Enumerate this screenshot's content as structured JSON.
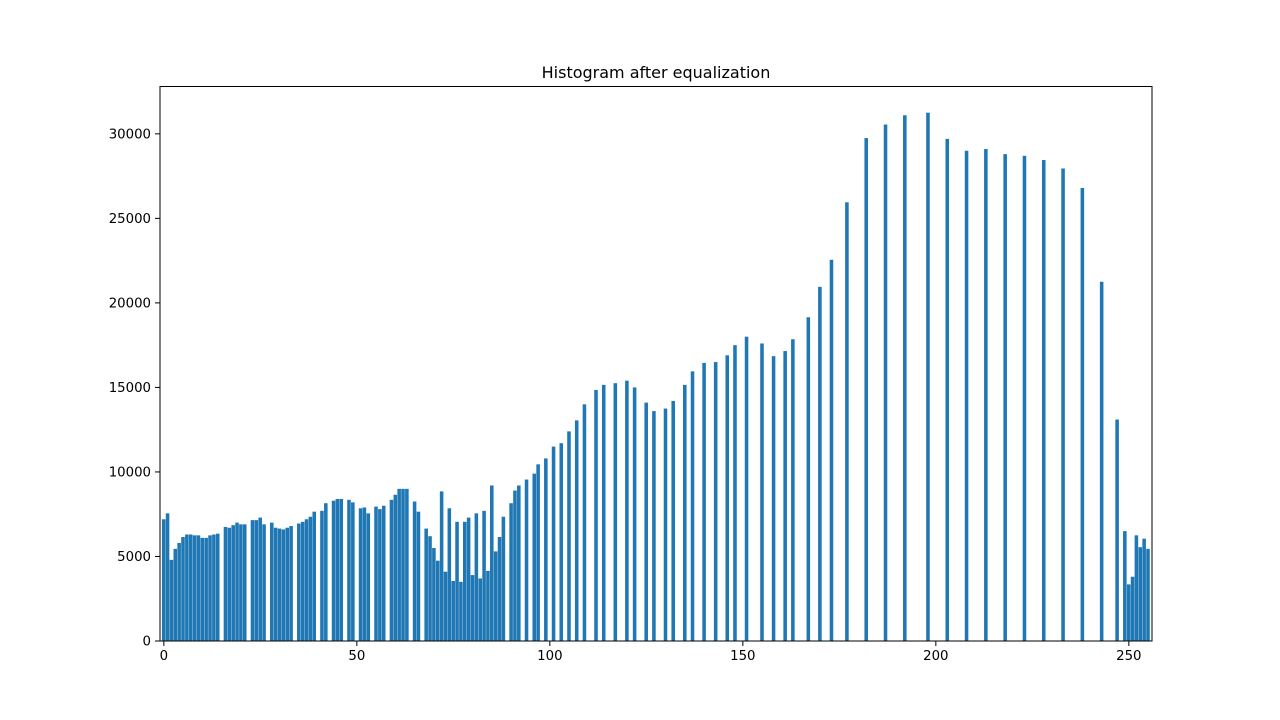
{
  "chart_data": {
    "type": "bar",
    "title": "Histogram after equalization",
    "xlabel": "",
    "ylabel": "",
    "xlim": [
      -1,
      256
    ],
    "ylim": [
      0,
      32800
    ],
    "xticks": [
      0,
      50,
      100,
      150,
      200,
      250
    ],
    "yticks": [
      0,
      5000,
      10000,
      15000,
      20000,
      25000,
      30000
    ],
    "grid": false,
    "legend": "none",
    "bar_color": "#1f77b4",
    "x": [
      0,
      1,
      2,
      3,
      4,
      5,
      6,
      7,
      8,
      9,
      10,
      11,
      12,
      13,
      14,
      15,
      16,
      17,
      18,
      19,
      20,
      21,
      22,
      23,
      24,
      25,
      26,
      27,
      28,
      29,
      30,
      31,
      32,
      33,
      34,
      35,
      36,
      37,
      38,
      39,
      40,
      41,
      42,
      43,
      44,
      45,
      46,
      47,
      48,
      49,
      50,
      51,
      52,
      53,
      54,
      55,
      56,
      57,
      58,
      59,
      60,
      61,
      62,
      63,
      64,
      65,
      66,
      67,
      68,
      69,
      70,
      71,
      72,
      73,
      74,
      75,
      76,
      77,
      78,
      79,
      80,
      81,
      82,
      83,
      84,
      85,
      86,
      87,
      88,
      89,
      90,
      91,
      92,
      93,
      94,
      95,
      96,
      97,
      98,
      99,
      100,
      101,
      102,
      103,
      104,
      105,
      106,
      107,
      108,
      109,
      110,
      111,
      112,
      113,
      114,
      115,
      116,
      117,
      118,
      119,
      120,
      121,
      122,
      123,
      124,
      125,
      126,
      127,
      128,
      129,
      130,
      131,
      132,
      133,
      134,
      135,
      136,
      137,
      138,
      139,
      140,
      141,
      142,
      143,
      144,
      145,
      146,
      147,
      148,
      149,
      150,
      151,
      152,
      153,
      154,
      155,
      156,
      157,
      158,
      159,
      160,
      161,
      162,
      163,
      164,
      165,
      166,
      167,
      168,
      169,
      170,
      171,
      172,
      173,
      174,
      175,
      176,
      177,
      178,
      179,
      180,
      181,
      182,
      183,
      184,
      185,
      186,
      187,
      188,
      189,
      190,
      191,
      192,
      193,
      194,
      195,
      196,
      197,
      198,
      199,
      200,
      201,
      202,
      203,
      204,
      205,
      206,
      207,
      208,
      209,
      210,
      211,
      212,
      213,
      214,
      215,
      216,
      217,
      218,
      219,
      220,
      221,
      222,
      223,
      224,
      225,
      226,
      227,
      228,
      229,
      230,
      231,
      232,
      233,
      234,
      235,
      236,
      237,
      238,
      239,
      240,
      241,
      242,
      243,
      244,
      245,
      246,
      247,
      248,
      249,
      250,
      251,
      252,
      253,
      254,
      255
    ],
    "values": [
      7200,
      7550,
      4800,
      5450,
      5800,
      6150,
      6300,
      6300,
      6250,
      6250,
      6100,
      6100,
      6250,
      6300,
      6350,
      0,
      6750,
      6700,
      6850,
      7000,
      6900,
      6900,
      0,
      7150,
      7150,
      7300,
      6900,
      0,
      7000,
      6700,
      6650,
      6600,
      6700,
      6800,
      0,
      6950,
      7050,
      7200,
      7350,
      7650,
      0,
      7700,
      8150,
      0,
      8300,
      8400,
      8400,
      0,
      8350,
      8200,
      0,
      7850,
      7900,
      7550,
      0,
      7950,
      7800,
      8000,
      0,
      8350,
      8650,
      9000,
      9000,
      9000,
      0,
      8250,
      7650,
      0,
      6650,
      6200,
      5500,
      4750,
      8850,
      4100,
      7850,
      3550,
      7050,
      3500,
      7050,
      7300,
      3900,
      7550,
      3700,
      7700,
      4150,
      9200,
      5300,
      6150,
      7350,
      0,
      8150,
      8900,
      9200,
      0,
      9550,
      0,
      9900,
      10450,
      0,
      10800,
      0,
      11500,
      0,
      11700,
      0,
      12400,
      0,
      13050,
      0,
      14000,
      0,
      0,
      14850,
      0,
      15150,
      0,
      0,
      15250,
      0,
      0,
      15400,
      0,
      15000,
      0,
      0,
      14100,
      0,
      13600,
      0,
      0,
      13750,
      0,
      14200,
      0,
      0,
      15150,
      0,
      15950,
      0,
      0,
      16450,
      0,
      0,
      16500,
      0,
      0,
      16900,
      0,
      17500,
      0,
      0,
      18000,
      0,
      0,
      0,
      17600,
      0,
      0,
      16850,
      0,
      0,
      17150,
      0,
      17850,
      0,
      0,
      0,
      19150,
      0,
      0,
      20950,
      0,
      0,
      22550,
      0,
      0,
      0,
      25950,
      0,
      0,
      0,
      0,
      29750,
      0,
      0,
      0,
      0,
      30550,
      0,
      0,
      0,
      0,
      31100,
      0,
      0,
      0,
      0,
      0,
      31250,
      0,
      0,
      0,
      0,
      29700,
      0,
      0,
      0,
      0,
      29000,
      0,
      0,
      0,
      0,
      29100,
      0,
      0,
      0,
      0,
      28800,
      0,
      0,
      0,
      0,
      28700,
      0,
      0,
      0,
      0,
      28450,
      0,
      0,
      0,
      0,
      27950,
      0,
      0,
      0,
      0,
      26800,
      0,
      0,
      0,
      0,
      21250,
      0,
      0,
      0,
      13100,
      0,
      6500,
      3350,
      3800,
      6250,
      5550,
      6050,
      5450
    ]
  }
}
